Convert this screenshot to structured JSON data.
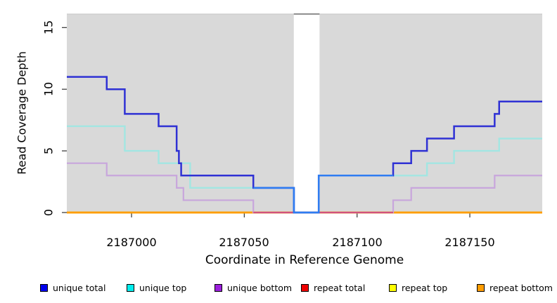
{
  "chart_data": {
    "type": "line",
    "subtype": "step",
    "title": "",
    "xlabel": "Coordinate in Reference Genome",
    "ylabel": "Read Coverage Depth",
    "xlim": [
      2186971.3,
      2187182.1
    ],
    "ylim": [
      0,
      16.1
    ],
    "grid": false,
    "plot_background": "#d9d9d9",
    "x_ticks": [
      2187000,
      2187050,
      2187100,
      2187150
    ],
    "x_tick_labels": [
      "2187000",
      "2187050",
      "2187100",
      "2187150"
    ],
    "y_ticks": [
      0,
      5,
      10,
      15
    ],
    "y_tick_labels": [
      "0",
      "5",
      "10",
      "15"
    ],
    "gap_region": {
      "x_start": 2187071.95,
      "x_end": 2187083.35
    },
    "overlap_span": [
      2187054,
      2187116
    ],
    "series": [
      {
        "name": "unique total",
        "color_plot": "#2f31d4",
        "color_overlap_cyan": "#2e7cf2",
        "steps": [
          [
            2186971.3,
            11
          ],
          [
            2186989,
            10
          ],
          [
            2186997,
            8
          ],
          [
            2187012,
            7
          ],
          [
            2187020,
            5
          ],
          [
            2187021,
            4
          ],
          [
            2187022,
            3
          ],
          [
            2187054,
            2
          ],
          [
            2187072,
            0
          ],
          [
            2187083,
            3
          ],
          [
            2187116,
            4
          ],
          [
            2187124,
            5
          ],
          [
            2187131,
            6
          ],
          [
            2187143,
            7
          ],
          [
            2187161,
            8
          ],
          [
            2187163,
            9
          ]
        ],
        "end_x": 2187182.1
      },
      {
        "name": "unique top",
        "color_plot": "#a2e6e2",
        "steps": [
          [
            2186971.3,
            7
          ],
          [
            2186997,
            5
          ],
          [
            2187012,
            4
          ],
          [
            2187026,
            2
          ],
          [
            2187072,
            0
          ],
          [
            2187083,
            3
          ],
          [
            2187131,
            4
          ],
          [
            2187143,
            5
          ],
          [
            2187163,
            6
          ]
        ],
        "end_x": 2187182.1
      },
      {
        "name": "unique bottom",
        "color_plot": "#c8a6dc",
        "color_at_zero_over_orange": "#d1537e",
        "steps": [
          [
            2186971.3,
            4
          ],
          [
            2186989,
            3
          ],
          [
            2187020,
            2
          ],
          [
            2187023,
            1
          ],
          [
            2187054,
            0
          ],
          [
            2187116,
            1
          ],
          [
            2187124,
            2
          ],
          [
            2187161,
            3
          ]
        ],
        "end_x": 2187182.1
      },
      {
        "name": "repeat total",
        "color_plot": "#ee0000",
        "steps": [
          [
            2186971.3,
            0
          ]
        ],
        "end_x": 2187182.1
      },
      {
        "name": "repeat top",
        "color_plot": "#ffff00",
        "steps": [
          [
            2186971.3,
            0
          ]
        ],
        "end_x": 2187182.1
      },
      {
        "name": "repeat bottom",
        "color_plot": "#ff9d00",
        "steps": [
          [
            2186971.3,
            0
          ]
        ],
        "end_x": 2187182.1
      }
    ]
  },
  "legend": {
    "items": [
      {
        "label": "unique total",
        "color": "#0000ee"
      },
      {
        "label": "unique top",
        "color": "#00eeee"
      },
      {
        "label": "unique bottom",
        "color": "#9c20dd"
      },
      {
        "label": "repeat total",
        "color": "#ee0000"
      },
      {
        "label": "repeat top",
        "color": "#ffff00"
      },
      {
        "label": "repeat bottom",
        "color": "#ff9d00"
      }
    ]
  }
}
